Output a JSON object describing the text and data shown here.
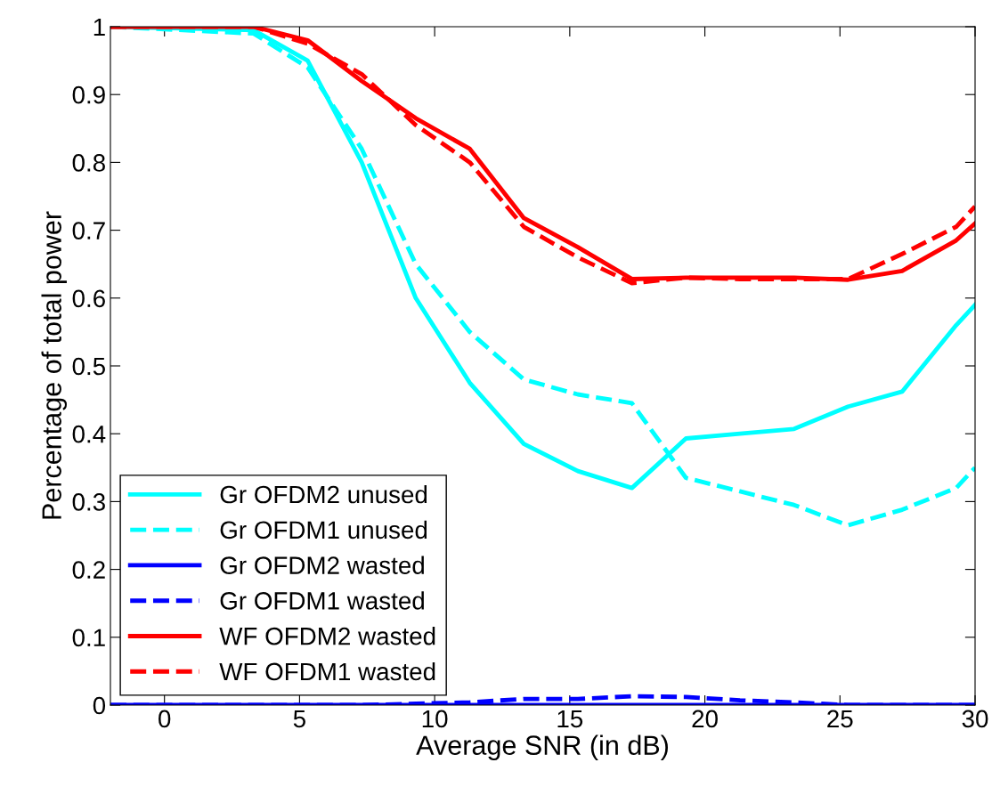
{
  "chart_data": {
    "type": "line",
    "xlabel": "Average SNR (in dB)",
    "ylabel": "Percentage of total power",
    "x": [
      -2,
      3.3,
      5.3,
      7.3,
      9.3,
      11.3,
      13.3,
      15.3,
      17.3,
      19.3,
      21.3,
      23.3,
      25.3,
      27.3,
      29.3,
      30
    ],
    "series": [
      {
        "name": "Gr OFDM2 unused",
        "color": "#00ffff",
        "line_style": "solid",
        "values": [
          1,
          0.995,
          0.95,
          0.8,
          0.6,
          0.475,
          0.385,
          0.345,
          0.32,
          0.393,
          0.4,
          0.407,
          0.44,
          0.462,
          0.56,
          0.59
        ]
      },
      {
        "name": "Gr OFDM1 unused",
        "color": "#00ffff",
        "line_style": "dashed",
        "values": [
          1,
          0.99,
          0.94,
          0.82,
          0.65,
          0.55,
          0.48,
          0.458,
          0.445,
          0.335,
          0.315,
          0.295,
          0.265,
          0.288,
          0.32,
          0.35
        ]
      },
      {
        "name": "Gr OFDM2 wasted",
        "color": "#0000ff",
        "line_style": "solid",
        "values": [
          0,
          0,
          0,
          0,
          0,
          0,
          0,
          0,
          0,
          0,
          0,
          0,
          0,
          0,
          0,
          0
        ]
      },
      {
        "name": "Gr OFDM1 wasted",
        "color": "#0000ff",
        "line_style": "dashed",
        "values": [
          0,
          0,
          0,
          0,
          0.002,
          0.004,
          0.009,
          0.009,
          0.013,
          0.012,
          0.007,
          0.004,
          0,
          0,
          0,
          0
        ]
      },
      {
        "name": "WF OFDM2 wasted",
        "color": "#ff0000",
        "line_style": "solid",
        "values": [
          1,
          1,
          0.98,
          0.92,
          0.865,
          0.82,
          0.718,
          0.675,
          0.628,
          0.63,
          0.63,
          0.63,
          0.627,
          0.64,
          0.685,
          0.71
        ]
      },
      {
        "name": "WF OFDM1 wasted",
        "color": "#ff0000",
        "line_style": "dashed",
        "values": [
          1,
          1,
          0.975,
          0.93,
          0.855,
          0.8,
          0.705,
          0.66,
          0.622,
          0.63,
          0.628,
          0.628,
          0.628,
          0.665,
          0.705,
          0.735
        ]
      }
    ],
    "xlim": [
      -2,
      30
    ],
    "xticks": [
      0,
      5,
      10,
      15,
      20,
      25,
      30
    ],
    "ylim": [
      0,
      1
    ],
    "yticks": [
      0,
      0.1,
      0.2,
      0.3,
      0.4,
      0.5,
      0.6,
      0.7,
      0.8,
      0.9,
      1
    ],
    "grid": false,
    "legend": "bottom left",
    "marker": "none"
  }
}
